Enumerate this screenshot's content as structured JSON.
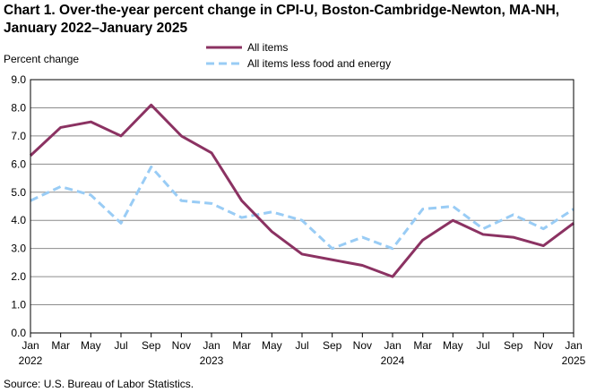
{
  "header": {
    "title": "Chart 1. Over-the-year percent change in CPI-U, Boston-Cambridge-Newton, MA-NH, January 2022–January 2025"
  },
  "footer": {
    "source": "Source: U.S. Bureau of Labor Statistics."
  },
  "colors": {
    "all_items": "#8B3262",
    "less_food_energy": "#99CCF5",
    "grid": "#8c8c8c",
    "axis": "#000000"
  },
  "chart_data": {
    "type": "line",
    "title": "Chart 1. Over-the-year percent change in CPI-U, Boston-Cambridge-Newton, MA-NH, January 2022–January 2025",
    "ylabel": "Percent change",
    "xlabel": "",
    "ylim": [
      0,
      9
    ],
    "yticks": [
      "0.0",
      "1.0",
      "2.0",
      "3.0",
      "4.0",
      "5.0",
      "6.0",
      "7.0",
      "8.0",
      "9.0"
    ],
    "grid": true,
    "legend_position": "top-center",
    "categories": [
      "Jan 2022",
      "Mar 2022",
      "May 2022",
      "Jul 2022",
      "Sep 2022",
      "Nov 2022",
      "Jan 2023",
      "Mar 2023",
      "May 2023",
      "Jul 2023",
      "Sep 2023",
      "Nov 2023",
      "Jan 2024",
      "Mar 2024",
      "May 2024",
      "Jul 2024",
      "Sep 2024",
      "Nov 2024",
      "Jan 2025"
    ],
    "x_tick_labels": [
      {
        "month": "Jan",
        "year": "2022"
      },
      {
        "month": "Mar",
        "year": ""
      },
      {
        "month": "May",
        "year": ""
      },
      {
        "month": "Jul",
        "year": ""
      },
      {
        "month": "Sep",
        "year": ""
      },
      {
        "month": "Nov",
        "year": ""
      },
      {
        "month": "Jan",
        "year": "2023"
      },
      {
        "month": "Mar",
        "year": ""
      },
      {
        "month": "May",
        "year": ""
      },
      {
        "month": "Jul",
        "year": ""
      },
      {
        "month": "Sep",
        "year": ""
      },
      {
        "month": "Nov",
        "year": ""
      },
      {
        "month": "Jan",
        "year": "2024"
      },
      {
        "month": "Mar",
        "year": ""
      },
      {
        "month": "May",
        "year": ""
      },
      {
        "month": "Jul",
        "year": ""
      },
      {
        "month": "Sep",
        "year": ""
      },
      {
        "month": "Nov",
        "year": ""
      },
      {
        "month": "Jan",
        "year": "2025"
      }
    ],
    "series": [
      {
        "name": "All items",
        "style": "solid",
        "values": [
          6.3,
          7.3,
          7.5,
          7.0,
          8.1,
          7.0,
          6.4,
          4.7,
          3.6,
          2.8,
          2.6,
          2.4,
          2.0,
          3.3,
          4.0,
          3.5,
          3.4,
          3.1,
          3.9
        ]
      },
      {
        "name": "All items less food and energy",
        "style": "dashed",
        "values": [
          4.7,
          5.2,
          4.9,
          3.9,
          5.9,
          4.7,
          4.6,
          4.1,
          4.3,
          4.0,
          3.0,
          3.4,
          3.0,
          4.4,
          4.5,
          3.7,
          4.2,
          3.7,
          4.4
        ]
      }
    ]
  }
}
